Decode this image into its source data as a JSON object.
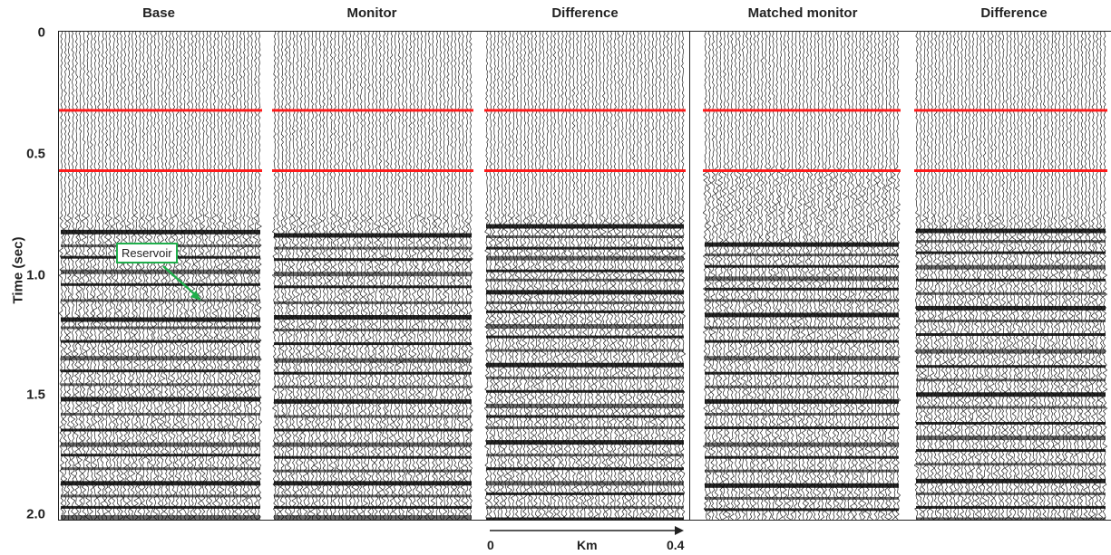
{
  "panels": [
    {
      "title": "Base"
    },
    {
      "title": "Monitor"
    },
    {
      "title": "Difference"
    },
    {
      "title": "Matched monitor"
    },
    {
      "title": "Difference"
    }
  ],
  "y_axis": {
    "label": "Time (sec)",
    "ticks": [
      "0",
      "0.5",
      "1.0",
      "1.5",
      "2.0"
    ]
  },
  "annotation": {
    "text": "Reservoir"
  },
  "scale_bar": {
    "start": "0",
    "unit": "Km",
    "end": "0.4"
  },
  "colors": {
    "horizon_lines": "#ff1a1a",
    "callout_border": "#1fae4b",
    "wiggles": "#000000"
  }
}
